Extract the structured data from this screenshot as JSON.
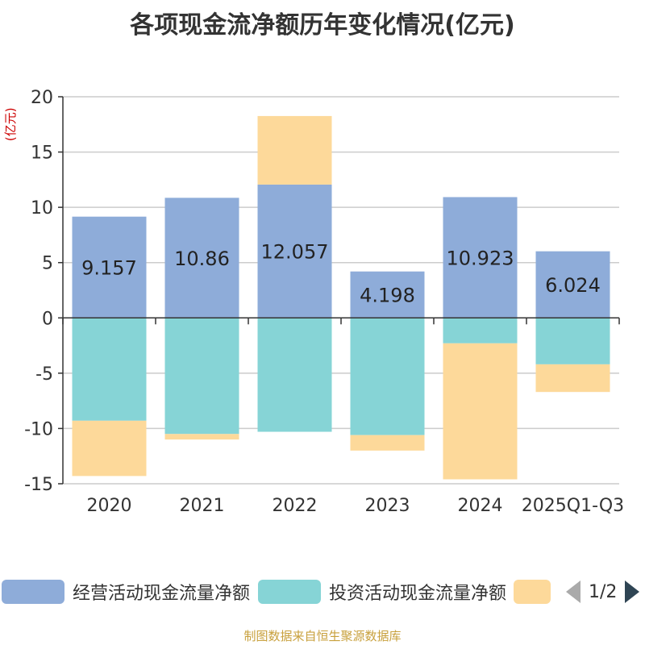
{
  "title": "各项现金流净额历年变化情况(亿元)",
  "source": "制图数据来自恒生聚源数据库",
  "colors": {
    "operating": "#8eacd9",
    "investing": "#86d4d6",
    "financing": "#fdd99a",
    "axis": "#333333",
    "grid": "#cccccc",
    "unit": "#cc0000"
  },
  "legend": {
    "items": [
      "经营活动现金流量净额",
      "投资活动现金流量净额",
      ""
    ],
    "page": "1/2"
  },
  "chart_data": {
    "type": "bar",
    "stacked": true,
    "title": "各项现金流净额历年变化情况(亿元)",
    "ylabel": "(亿元)",
    "xlabel": "",
    "categories": [
      "2020",
      "2021",
      "2022",
      "2023",
      "2024",
      "2025Q1-Q3"
    ],
    "ylim": [
      -15,
      20
    ],
    "yticks": [
      -15,
      -10,
      -5,
      0,
      5,
      10,
      15,
      20
    ],
    "grid": true,
    "series": [
      {
        "name": "经营活动现金流量净额",
        "values": [
          9.157,
          10.86,
          12.057,
          4.198,
          10.923,
          6.024
        ],
        "labels": [
          "9.157",
          "10.86",
          "12.057",
          "4.198",
          "10.923",
          "6.024"
        ]
      },
      {
        "name": "投资活动现金流量净额",
        "values": [
          -9.3,
          -10.5,
          -10.3,
          -10.6,
          -2.3,
          -4.2
        ]
      },
      {
        "name": "",
        "values": [
          -5.0,
          -0.5,
          6.2,
          -1.4,
          -12.3,
          -2.5
        ]
      }
    ]
  }
}
